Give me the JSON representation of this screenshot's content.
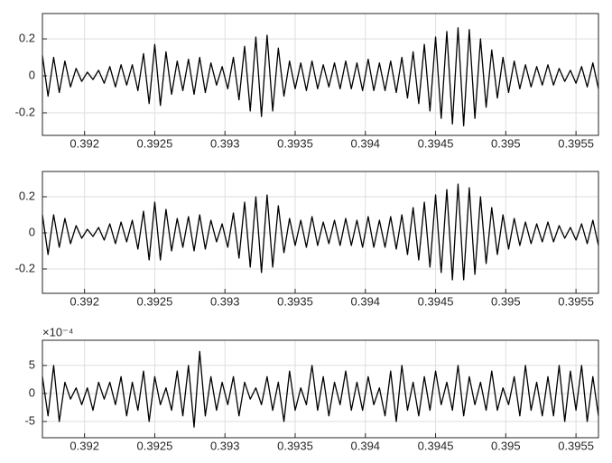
{
  "chart_data": [
    {
      "type": "line",
      "grid": true,
      "x": [
        0.3917,
        0.39174,
        0.39178,
        0.39182,
        0.39186,
        0.3919,
        0.39194,
        0.39198,
        0.39202,
        0.39206,
        0.3921,
        0.39214,
        0.39218,
        0.39222,
        0.39226,
        0.3923,
        0.39234,
        0.39238,
        0.39242,
        0.39246,
        0.3925,
        0.39254,
        0.39258,
        0.39262,
        0.39266,
        0.3927,
        0.39274,
        0.39278,
        0.39282,
        0.39286,
        0.3929,
        0.39294,
        0.39298,
        0.39302,
        0.39306,
        0.3931,
        0.39314,
        0.39318,
        0.39322,
        0.39326,
        0.3933,
        0.39334,
        0.39338,
        0.39342,
        0.39346,
        0.3935,
        0.39354,
        0.39358,
        0.39362,
        0.39366,
        0.3937,
        0.39374,
        0.39378,
        0.39382,
        0.39386,
        0.3939,
        0.39394,
        0.39398,
        0.39402,
        0.39406,
        0.3941,
        0.39414,
        0.39418,
        0.39422,
        0.39426,
        0.3943,
        0.39434,
        0.39438,
        0.39442,
        0.39446,
        0.3945,
        0.39454,
        0.39458,
        0.39462,
        0.39466,
        0.3947,
        0.39474,
        0.39478,
        0.39482,
        0.39486,
        0.3949,
        0.39494,
        0.39498,
        0.39502,
        0.39506,
        0.3951,
        0.39514,
        0.39518,
        0.39522,
        0.39526,
        0.3953,
        0.39534,
        0.39538,
        0.39542,
        0.39546,
        0.3955,
        0.39554,
        0.39558,
        0.39562,
        0.39566
      ],
      "series": [
        {
          "color": "#000000",
          "values": [
            0.11,
            -0.11,
            0.1,
            -0.09,
            0.08,
            -0.06,
            0.04,
            -0.03,
            0.02,
            -0.02,
            0.03,
            -0.04,
            0.05,
            -0.06,
            0.06,
            -0.05,
            0.06,
            -0.08,
            0.12,
            -0.15,
            0.17,
            -0.16,
            0.13,
            -0.1,
            0.08,
            -0.08,
            0.09,
            -0.1,
            0.1,
            -0.09,
            0.07,
            -0.05,
            0.05,
            -0.07,
            0.1,
            -0.13,
            0.16,
            -0.19,
            0.21,
            -0.22,
            0.22,
            -0.19,
            0.15,
            -0.11,
            0.08,
            -0.07,
            0.07,
            -0.08,
            0.08,
            -0.07,
            0.06,
            -0.06,
            0.07,
            -0.07,
            0.08,
            -0.07,
            0.07,
            -0.08,
            0.09,
            -0.08,
            0.07,
            -0.08,
            0.08,
            -0.09,
            0.1,
            -0.12,
            0.13,
            -0.15,
            0.17,
            -0.19,
            0.21,
            -0.23,
            0.24,
            -0.26,
            0.26,
            -0.27,
            0.25,
            -0.23,
            0.2,
            -0.17,
            0.14,
            -0.12,
            0.1,
            -0.09,
            0.08,
            -0.07,
            0.06,
            -0.06,
            0.05,
            -0.05,
            0.06,
            -0.05,
            0.04,
            -0.03,
            0.03,
            -0.04,
            0.05,
            -0.06,
            0.07,
            -0.07
          ]
        }
      ],
      "xlim": [
        0.3917,
        0.39566
      ],
      "xticks": [
        0.392,
        0.3925,
        0.393,
        0.3935,
        0.394,
        0.3945,
        0.395,
        0.3955
      ],
      "ylim": [
        -0.322,
        0.337
      ],
      "yticks": [
        -0.2,
        0,
        0.2
      ]
    },
    {
      "type": "line",
      "grid": true,
      "x": [
        0.3917,
        0.39174,
        0.39178,
        0.39182,
        0.39186,
        0.3919,
        0.39194,
        0.39198,
        0.39202,
        0.39206,
        0.3921,
        0.39214,
        0.39218,
        0.39222,
        0.39226,
        0.3923,
        0.39234,
        0.39238,
        0.39242,
        0.39246,
        0.3925,
        0.39254,
        0.39258,
        0.39262,
        0.39266,
        0.3927,
        0.39274,
        0.39278,
        0.39282,
        0.39286,
        0.3929,
        0.39294,
        0.39298,
        0.39302,
        0.39306,
        0.3931,
        0.39314,
        0.39318,
        0.39322,
        0.39326,
        0.3933,
        0.39334,
        0.39338,
        0.39342,
        0.39346,
        0.3935,
        0.39354,
        0.39358,
        0.39362,
        0.39366,
        0.3937,
        0.39374,
        0.39378,
        0.39382,
        0.39386,
        0.3939,
        0.39394,
        0.39398,
        0.39402,
        0.39406,
        0.3941,
        0.39414,
        0.39418,
        0.39422,
        0.39426,
        0.3943,
        0.39434,
        0.39438,
        0.39442,
        0.39446,
        0.3945,
        0.39454,
        0.39458,
        0.39462,
        0.39466,
        0.3947,
        0.39474,
        0.39478,
        0.39482,
        0.39486,
        0.3949,
        0.39494,
        0.39498,
        0.39502,
        0.39506,
        0.3951,
        0.39514,
        0.39518,
        0.39522,
        0.39526,
        0.3953,
        0.39534,
        0.39538,
        0.39542,
        0.39546,
        0.3955,
        0.39554,
        0.39558,
        0.39562,
        0.39566
      ],
      "series": [
        {
          "color": "#000000",
          "values": [
            0.1,
            -0.12,
            0.1,
            -0.08,
            0.08,
            -0.06,
            0.04,
            -0.03,
            0.02,
            -0.02,
            0.03,
            -0.04,
            0.05,
            -0.06,
            0.06,
            -0.05,
            0.07,
            -0.09,
            0.12,
            -0.15,
            0.17,
            -0.15,
            0.13,
            -0.1,
            0.08,
            -0.08,
            0.09,
            -0.1,
            0.1,
            -0.09,
            0.07,
            -0.05,
            0.05,
            -0.08,
            0.11,
            -0.14,
            0.17,
            -0.19,
            0.2,
            -0.22,
            0.21,
            -0.19,
            0.15,
            -0.11,
            0.08,
            -0.07,
            0.07,
            -0.08,
            0.09,
            -0.07,
            0.06,
            -0.06,
            0.07,
            -0.07,
            0.08,
            -0.07,
            0.07,
            -0.08,
            0.09,
            -0.08,
            0.07,
            -0.08,
            0.09,
            -0.09,
            0.1,
            -0.12,
            0.14,
            -0.15,
            0.17,
            -0.19,
            0.21,
            -0.22,
            0.24,
            -0.26,
            0.27,
            -0.26,
            0.25,
            -0.23,
            0.2,
            -0.17,
            0.14,
            -0.12,
            0.1,
            -0.09,
            0.08,
            -0.07,
            0.06,
            -0.06,
            0.05,
            -0.05,
            0.06,
            -0.05,
            0.04,
            -0.03,
            0.03,
            -0.04,
            0.05,
            -0.06,
            0.07,
            -0.07
          ]
        }
      ],
      "xlim": [
        0.3917,
        0.39566
      ],
      "xticks": [
        0.392,
        0.3925,
        0.393,
        0.3935,
        0.394,
        0.3945,
        0.395,
        0.3955
      ],
      "ylim": [
        -0.335,
        0.34
      ],
      "yticks": [
        -0.2,
        0,
        0.2
      ]
    },
    {
      "type": "line",
      "grid": true,
      "y_exponent_label": "×10⁻⁴",
      "x": [
        0.3917,
        0.39174,
        0.39178,
        0.39182,
        0.39186,
        0.3919,
        0.39194,
        0.39198,
        0.39202,
        0.39206,
        0.3921,
        0.39214,
        0.39218,
        0.39222,
        0.39226,
        0.3923,
        0.39234,
        0.39238,
        0.39242,
        0.39246,
        0.3925,
        0.39254,
        0.39258,
        0.39262,
        0.39266,
        0.3927,
        0.39274,
        0.39278,
        0.39282,
        0.39286,
        0.3929,
        0.39294,
        0.39298,
        0.39302,
        0.39306,
        0.3931,
        0.39314,
        0.39318,
        0.39322,
        0.39326,
        0.3933,
        0.39334,
        0.39338,
        0.39342,
        0.39346,
        0.3935,
        0.39354,
        0.39358,
        0.39362,
        0.39366,
        0.3937,
        0.39374,
        0.39378,
        0.39382,
        0.39386,
        0.3939,
        0.39394,
        0.39398,
        0.39402,
        0.39406,
        0.3941,
        0.39414,
        0.39418,
        0.39422,
        0.39426,
        0.3943,
        0.39434,
        0.39438,
        0.39442,
        0.39446,
        0.3945,
        0.39454,
        0.39458,
        0.39462,
        0.39466,
        0.3947,
        0.39474,
        0.39478,
        0.39482,
        0.39486,
        0.3949,
        0.39494,
        0.39498,
        0.39502,
        0.39506,
        0.3951,
        0.39514,
        0.39518,
        0.39522,
        0.39526,
        0.3953,
        0.39534,
        0.39538,
        0.39542,
        0.39546,
        0.3955,
        0.39554,
        0.39558,
        0.39562,
        0.39566
      ],
      "series": [
        {
          "color": "#000000",
          "values": [
            3,
            -4,
            5,
            -5,
            2,
            -1,
            1,
            -2,
            1,
            -3,
            2,
            -1,
            2,
            -2,
            3,
            -4,
            2,
            -3,
            4,
            -5,
            3,
            -2,
            1,
            -3,
            4,
            -4,
            5,
            -6,
            7.5,
            -4,
            3,
            -3,
            2,
            -2,
            3,
            -4,
            2,
            -1,
            1,
            -2,
            3,
            -3,
            2,
            -5,
            4,
            -3,
            1,
            -2,
            5,
            -3,
            3,
            -4,
            2,
            -2,
            4,
            -3,
            2,
            -3,
            3,
            -2,
            1,
            -4,
            4,
            -5,
            5,
            -3,
            2,
            -4,
            3,
            -3,
            4,
            -2,
            2,
            -3,
            5,
            -4,
            3,
            -2,
            2,
            -3,
            4,
            -3,
            1,
            -2,
            3,
            -4,
            5,
            -3,
            2,
            -4,
            3,
            -4,
            5,
            -5,
            4,
            -3,
            5,
            -5,
            3,
            -4
          ]
        }
      ],
      "xlim": [
        0.3917,
        0.39566
      ],
      "xticks": [
        0.392,
        0.3925,
        0.393,
        0.3935,
        0.394,
        0.3945,
        0.395,
        0.3955
      ],
      "ylim": [
        -7.9,
        9.5
      ],
      "yticks": [
        -5,
        0,
        5
      ]
    }
  ]
}
